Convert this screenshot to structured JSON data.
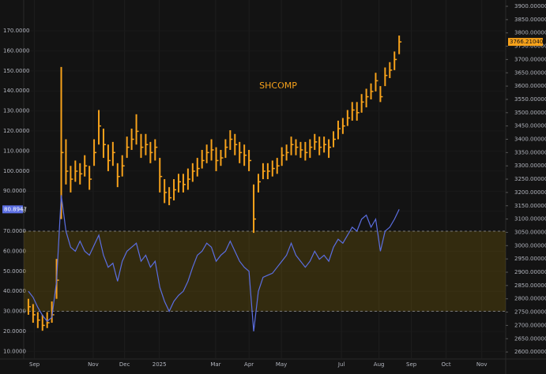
{
  "chart_data": {
    "type": "ohlc",
    "title": "SHCOMP",
    "xlim": [
      -1,
      101.7
    ],
    "xticks": [
      {
        "value": 1.3,
        "label": "Sep"
      },
      {
        "value": 13.8,
        "label": "Nov"
      },
      {
        "value": 20.5,
        "label": "Dec"
      },
      {
        "value": 27.9,
        "label": "2025"
      },
      {
        "value": 39.9,
        "label": "Mar"
      },
      {
        "value": 47,
        "label": "Apr"
      },
      {
        "value": 53.9,
        "label": "May"
      },
      {
        "value": 66.7,
        "label": "Jul"
      },
      {
        "value": 74.7,
        "label": "Aug"
      },
      {
        "value": 81.6,
        "label": "Sep"
      },
      {
        "value": 89,
        "label": "Oct"
      },
      {
        "value": 96.6,
        "label": "Nov"
      }
    ],
    "ylim": [
      6.2,
      183.4
    ],
    "yticks": [
      {
        "value": 10,
        "label": "10.0000"
      },
      {
        "value": 20,
        "label": "20.0000"
      },
      {
        "value": 30,
        "label": "30.0000"
      },
      {
        "value": 40,
        "label": "40.0000"
      },
      {
        "value": 50,
        "label": "50.0000"
      },
      {
        "value": 60,
        "label": "60.0000"
      },
      {
        "value": 70,
        "label": "70.0000"
      },
      {
        "value": 80,
        "label": "80.0000"
      },
      {
        "value": 90,
        "label": "90.0000"
      },
      {
        "value": 100,
        "label": "100.0000"
      },
      {
        "value": 110,
        "label": "110.0000"
      },
      {
        "value": 120,
        "label": "120.0000"
      },
      {
        "value": 130,
        "label": "130.0000"
      },
      {
        "value": 140,
        "label": "140.0000"
      },
      {
        "value": 150,
        "label": "150.0000"
      },
      {
        "value": 160,
        "label": "160.0000"
      },
      {
        "value": 170,
        "label": "170.0000"
      }
    ],
    "y2lim": [
      2573.6,
      3908.9
    ],
    "y2ticks": [
      {
        "value": 2600,
        "label": "2600.00000"
      },
      {
        "value": 2650,
        "label": "2650.00000"
      },
      {
        "value": 2700,
        "label": "2700.00000"
      },
      {
        "value": 2750,
        "label": "2750.00000"
      },
      {
        "value": 2800,
        "label": "2800.00000"
      },
      {
        "value": 2850,
        "label": "2850.00000"
      },
      {
        "value": 2900,
        "label": "2900.00000"
      },
      {
        "value": 2950,
        "label": "2950.00000"
      },
      {
        "value": 3000,
        "label": "3000.00000"
      },
      {
        "value": 3050,
        "label": "3050.00000"
      },
      {
        "value": 3100,
        "label": "3100.00000"
      },
      {
        "value": 3150,
        "label": "3150.00000"
      },
      {
        "value": 3200,
        "label": "3200.00000"
      },
      {
        "value": 3250,
        "label": "3250.00000"
      },
      {
        "value": 3300,
        "label": "3300.00000"
      },
      {
        "value": 3350,
        "label": "3350.00000"
      },
      {
        "value": 3400,
        "label": "3400.00000"
      },
      {
        "value": 3450,
        "label": "3450.00000"
      },
      {
        "value": 3500,
        "label": "3500.00000"
      },
      {
        "value": 3550,
        "label": "3550.00000"
      },
      {
        "value": 3600,
        "label": "3600.00000"
      },
      {
        "value": 3650,
        "label": "3650.00000"
      },
      {
        "value": 3700,
        "label": "3700.00000"
      },
      {
        "value": 3750,
        "label": "3750.00000"
      },
      {
        "value": 3800,
        "label": "3800.00000"
      },
      {
        "value": 3850,
        "label": "3850.00000"
      },
      {
        "value": 3900,
        "label": "3900.00000"
      }
    ],
    "band": [
      30,
      70
    ],
    "grid": true,
    "series": [
      {
        "name": "SHCOMP",
        "color": "#f7a21b",
        "axis": "y2",
        "high": [
          2800,
          2780,
          2750,
          2740,
          2750,
          2790,
          2950,
          3672,
          3400,
          3300,
          3320,
          3310,
          3340,
          3300,
          3400,
          3510,
          3440,
          3380,
          3390,
          3310,
          3340,
          3410,
          3440,
          3494,
          3420,
          3420,
          3390,
          3400,
          3330,
          3250,
          3220,
          3250,
          3270,
          3270,
          3290,
          3310,
          3330,
          3360,
          3380,
          3400,
          3370,
          3360,
          3400,
          3434,
          3420,
          3390,
          3380,
          3360,
          3230,
          3270,
          3310,
          3310,
          3320,
          3330,
          3370,
          3380,
          3410,
          3400,
          3390,
          3390,
          3400,
          3420,
          3410,
          3410,
          3400,
          3430,
          3470,
          3480,
          3510,
          3540,
          3540,
          3570,
          3590,
          3610,
          3650,
          3600,
          3670,
          3690,
          3730,
          3790
        ],
        "low": [
          2740,
          2710,
          2690,
          2680,
          2690,
          2710,
          2800,
          3100,
          3230,
          3200,
          3240,
          3230,
          3260,
          3210,
          3300,
          3380,
          3330,
          3280,
          3300,
          3220,
          3260,
          3330,
          3360,
          3380,
          3330,
          3340,
          3310,
          3320,
          3200,
          3160,
          3152,
          3170,
          3200,
          3200,
          3210,
          3240,
          3260,
          3290,
          3310,
          3320,
          3280,
          3300,
          3330,
          3360,
          3340,
          3310,
          3300,
          3280,
          3048,
          3200,
          3250,
          3250,
          3260,
          3270,
          3300,
          3320,
          3340,
          3340,
          3330,
          3320,
          3330,
          3360,
          3340,
          3350,
          3330,
          3370,
          3400,
          3420,
          3450,
          3470,
          3470,
          3500,
          3520,
          3550,
          3580,
          3540,
          3600,
          3630,
          3660,
          3720
        ],
        "values": [
          2770,
          2740,
          2720,
          2700,
          2710,
          2740,
          2870,
          3350,
          3280,
          3250,
          3280,
          3270,
          3300,
          3250,
          3350,
          3450,
          3380,
          3320,
          3350,
          3260,
          3300,
          3370,
          3400,
          3430,
          3370,
          3380,
          3350,
          3370,
          3260,
          3200,
          3180,
          3210,
          3240,
          3230,
          3250,
          3280,
          3290,
          3320,
          3350,
          3360,
          3320,
          3330,
          3370,
          3400,
          3380,
          3350,
          3340,
          3320,
          3100,
          3240,
          3280,
          3280,
          3290,
          3300,
          3340,
          3350,
          3380,
          3370,
          3360,
          3350,
          3370,
          3390,
          3370,
          3380,
          3370,
          3400,
          3440,
          3450,
          3480,
          3510,
          3500,
          3540,
          3560,
          3580,
          3620,
          3560,
          3640,
          3660,
          3700,
          3766.2104
        ]
      },
      {
        "color": "#5b6ee1",
        "axis": "y",
        "values": [
          40,
          37,
          32,
          28,
          25,
          27,
          45,
          88,
          70,
          62,
          60,
          65,
          60,
          58,
          63,
          68,
          58,
          52,
          54,
          45,
          55,
          60,
          62,
          64,
          55,
          58,
          52,
          55,
          42,
          35,
          30,
          35,
          38,
          40,
          45,
          52,
          58,
          60,
          64,
          62,
          55,
          58,
          60,
          65,
          60,
          55,
          52,
          50,
          20,
          40,
          47,
          48,
          49,
          52,
          55,
          58,
          64,
          58,
          55,
          52,
          55,
          60,
          56,
          58,
          55,
          62,
          66,
          64,
          68,
          72,
          70,
          76,
          78,
          72,
          76,
          60,
          70,
          72,
          76,
          80.8947
        ]
      }
    ],
    "annotations": [
      {
        "text": "80.8947",
        "value": 80.8947,
        "axis": "y",
        "color": "#5b6ee1"
      },
      {
        "text": "3766.21040",
        "value": 3766.2104,
        "axis": "y2",
        "color": "#f7a21b"
      }
    ]
  }
}
